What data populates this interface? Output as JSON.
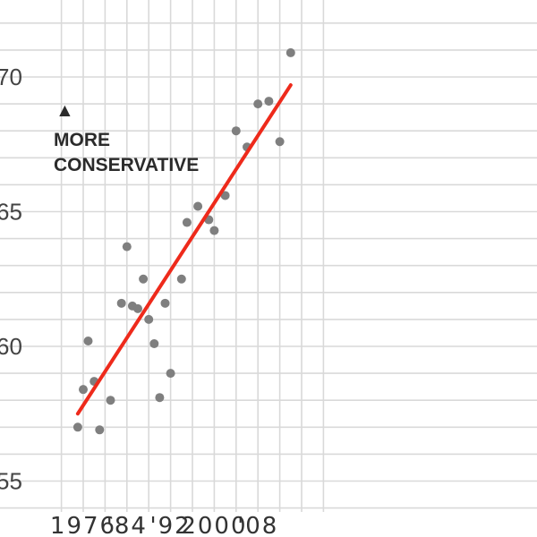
{
  "chart_data": {
    "type": "scatter",
    "title": "",
    "xlabel": "",
    "ylabel": "",
    "xlim": [
      1971.5,
      2020.5
    ],
    "ylim": [
      54,
      72
    ],
    "x_ticks": [
      1976,
      1984,
      1992,
      2000,
      2008
    ],
    "x_tick_labels": [
      "1976",
      "'84",
      "'92",
      "2000",
      "'08"
    ],
    "y_ticks": [
      55,
      60,
      65,
      70
    ],
    "y_tick_labels": [
      "55",
      "60",
      "65",
      "70"
    ],
    "grid": true,
    "annotation": {
      "arrow": "▲",
      "lines": [
        "MORE",
        "CONSERVATIVE"
      ]
    },
    "series": [
      {
        "points": [
          {
            "x": 1975,
            "y": 57.0
          },
          {
            "x": 1976,
            "y": 58.4
          },
          {
            "x": 1976.9,
            "y": 60.2
          },
          {
            "x": 1978,
            "y": 58.7
          },
          {
            "x": 1979,
            "y": 56.9
          },
          {
            "x": 1981,
            "y": 58.0
          },
          {
            "x": 1983,
            "y": 61.6
          },
          {
            "x": 1984,
            "y": 63.7
          },
          {
            "x": 1985,
            "y": 61.5
          },
          {
            "x": 1986,
            "y": 61.4
          },
          {
            "x": 1987,
            "y": 62.5
          },
          {
            "x": 1988,
            "y": 61.0
          },
          {
            "x": 1989,
            "y": 60.1
          },
          {
            "x": 1990,
            "y": 58.1
          },
          {
            "x": 1991,
            "y": 61.6
          },
          {
            "x": 1992,
            "y": 59.0
          },
          {
            "x": 1994,
            "y": 62.5
          },
          {
            "x": 1995,
            "y": 64.6
          },
          {
            "x": 1997,
            "y": 65.2
          },
          {
            "x": 1999,
            "y": 64.7
          },
          {
            "x": 2000,
            "y": 64.3
          },
          {
            "x": 2002,
            "y": 65.6
          },
          {
            "x": 2004,
            "y": 68.0
          },
          {
            "x": 2006,
            "y": 67.4
          },
          {
            "x": 2008,
            "y": 69.0
          },
          {
            "x": 2010,
            "y": 69.1
          },
          {
            "x": 2012,
            "y": 67.6
          },
          {
            "x": 2014,
            "y": 70.9
          }
        ]
      }
    ],
    "trendline": {
      "x": [
        1975,
        2014
      ],
      "y": [
        57.5,
        69.7
      ],
      "color": "#ee2a1b"
    },
    "colors": {
      "points": "#7f7f7f",
      "trend": "#ee2a1b",
      "grid": "#d9d9d9"
    }
  }
}
